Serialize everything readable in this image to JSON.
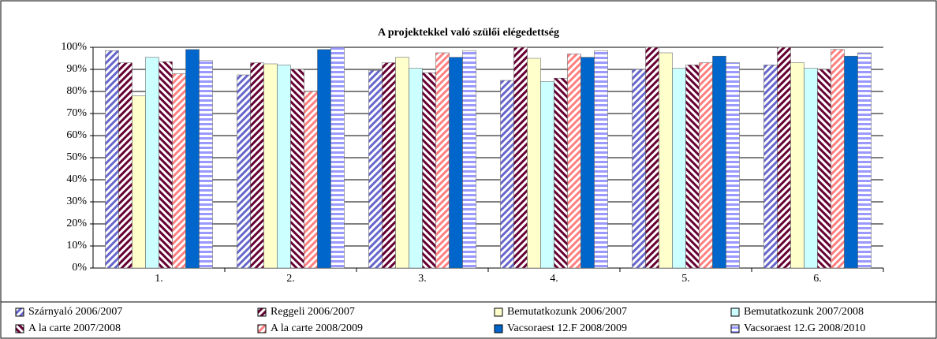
{
  "chart_data": {
    "type": "bar",
    "title": "A projektekkel való szülői elégedettség",
    "categories": [
      "1.",
      "2.",
      "3.",
      "4.",
      "5.",
      "6."
    ],
    "ylim": [
      0,
      100
    ],
    "yticks": [
      {
        "value": 0,
        "label": "0%"
      },
      {
        "value": 10,
        "label": "10%"
      },
      {
        "value": 20,
        "label": "20%"
      },
      {
        "value": 30,
        "label": "30%"
      },
      {
        "value": 40,
        "label": "40%"
      },
      {
        "value": 50,
        "label": "50%"
      },
      {
        "value": 60,
        "label": "60%"
      },
      {
        "value": 70,
        "label": "70%"
      },
      {
        "value": 80,
        "label": "80%"
      },
      {
        "value": 90,
        "label": "90%"
      },
      {
        "value": 100,
        "label": "100%"
      }
    ],
    "grid": true,
    "legend": "bottom",
    "series": [
      {
        "name": "Szárnyaló 2006/2007",
        "color": "#6666cc",
        "pattern": "diagonal-up",
        "values": [
          98.5,
          87.5,
          89.5,
          85,
          90,
          92
        ]
      },
      {
        "name": "Reggeli 2006/2007",
        "color": "#660033",
        "pattern": "diagonal-up",
        "values": [
          93,
          93,
          93,
          100,
          100,
          100
        ]
      },
      {
        "name": "Bemutatkozunk 2006/2007",
        "color": "#ffffcc",
        "pattern": "solid",
        "values": [
          78,
          92.5,
          95.5,
          95,
          97.5,
          93
        ]
      },
      {
        "name": "Bemutatkozunk 2007/2008",
        "color": "#ccffff",
        "pattern": "solid",
        "values": [
          95.5,
          92,
          90.5,
          84.5,
          90.5,
          90.5
        ]
      },
      {
        "name": "A la carte 2007/2008",
        "color": "#660033",
        "pattern": "diagonal-down",
        "values": [
          93.5,
          90,
          88.5,
          86,
          92,
          90
        ]
      },
      {
        "name": "A la carte 2008/2009",
        "color": "#ff8080",
        "pattern": "diagonal-up",
        "values": [
          88,
          80,
          97.5,
          97,
          93,
          99
        ]
      },
      {
        "name": "Vacsoraest 12.F 2008/2009",
        "color": "#0066cc",
        "pattern": "solid",
        "values": [
          99,
          99,
          95.5,
          95.5,
          96,
          96
        ]
      },
      {
        "name": "Vacsoraest 12.G 2008/2010",
        "color": "#9999ff",
        "pattern": "horizontal",
        "values": [
          94,
          100,
          98.5,
          98.5,
          93,
          97.5
        ]
      }
    ]
  }
}
